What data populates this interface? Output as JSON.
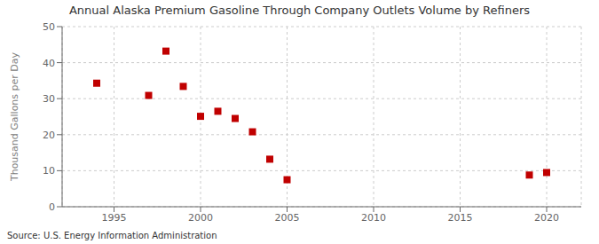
{
  "chart_data": {
    "type": "scatter",
    "title": "Annual Alaska Premium Gasoline Through Company Outlets Volume by Refiners",
    "ylabel": "Thousand Gallons per Day",
    "source": "Source: U.S. Energy Information Administration",
    "x": [
      1994,
      1997,
      1998,
      1999,
      2000,
      2001,
      2002,
      2003,
      2004,
      2005,
      2019,
      2020
    ],
    "values": [
      34.3,
      30.9,
      43.2,
      33.4,
      25.1,
      26.5,
      24.5,
      20.8,
      13.2,
      7.5,
      8.8,
      9.5
    ],
    "color": "#c00000",
    "marker": "square",
    "xlim": [
      1992,
      2022
    ],
    "ylim": [
      0,
      50
    ],
    "xticks": [
      1995,
      2000,
      2005,
      2010,
      2015,
      2020
    ],
    "yticks": [
      0,
      10,
      20,
      30,
      40,
      50
    ],
    "grid": true
  }
}
